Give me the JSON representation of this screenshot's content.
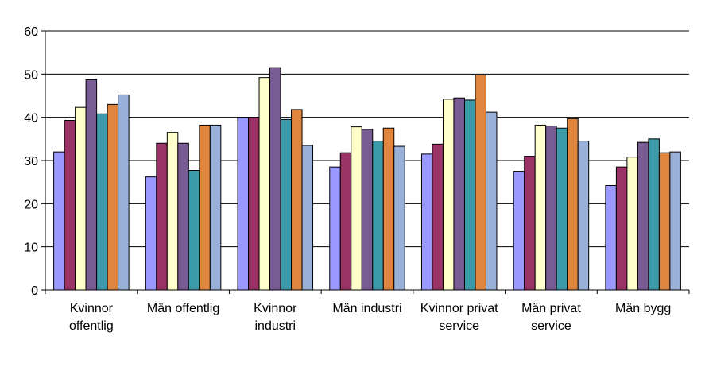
{
  "chart_data": {
    "type": "bar",
    "title": "",
    "xlabel": "",
    "ylabel": "",
    "ylim": [
      0,
      60
    ],
    "yticks": [
      "0",
      "10",
      "20",
      "30",
      "40",
      "50",
      "60"
    ],
    "grid": true,
    "legend": "none",
    "categories": [
      [
        "Kvinnor",
        "offentlig"
      ],
      [
        "Män offentlig"
      ],
      [
        "Kvinnor",
        "industri"
      ],
      [
        "Män industri"
      ],
      [
        "Kvinnor privat",
        "service"
      ],
      [
        "Män privat",
        "service"
      ],
      [
        "Män bygg"
      ]
    ],
    "series": [
      {
        "color": "#9999ff",
        "values": [
          32,
          26.2,
          40,
          28.5,
          31.5,
          27.5,
          24.2
        ]
      },
      {
        "color": "#993366",
        "values": [
          39.3,
          34,
          40,
          31.8,
          33.8,
          31,
          28.5
        ]
      },
      {
        "color": "#ffffcc",
        "values": [
          42.3,
          36.5,
          49.2,
          37.8,
          44.2,
          38.2,
          30.8
        ]
      },
      {
        "color": "#7a5c94",
        "values": [
          48.7,
          34,
          51.5,
          37.2,
          44.5,
          38,
          34.2
        ]
      },
      {
        "color": "#3d9aa8",
        "values": [
          40.8,
          27.7,
          39.5,
          34.5,
          44,
          37.5,
          35
        ]
      },
      {
        "color": "#e0853d",
        "values": [
          43,
          38.2,
          41.8,
          37.5,
          49.8,
          39.7,
          31.8
        ]
      },
      {
        "color": "#99b0d8",
        "values": [
          45.2,
          38.2,
          33.5,
          33.3,
          41.2,
          34.5,
          32
        ]
      }
    ]
  }
}
